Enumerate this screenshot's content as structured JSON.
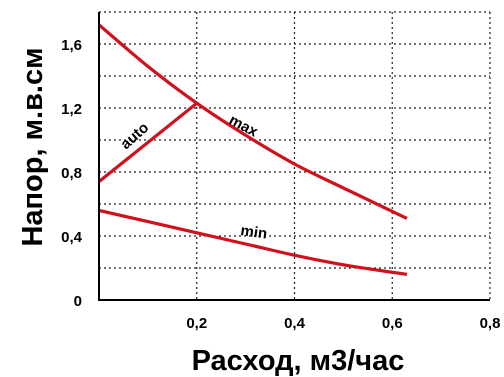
{
  "chart_data": {
    "type": "line",
    "xlabel": "Расход, м3/час",
    "ylabel": "Напор, м.в.см",
    "xlim": [
      0,
      0.8
    ],
    "ylim": [
      0,
      1.8
    ],
    "x_ticks": [
      {
        "value": 0.2,
        "label": "0,2"
      },
      {
        "value": 0.4,
        "label": "0,4"
      },
      {
        "value": 0.6,
        "label": "0,6"
      },
      {
        "value": 0.8,
        "label": "0,8"
      }
    ],
    "y_ticks": [
      {
        "value": 0,
        "label": "0"
      },
      {
        "value": 0.4,
        "label": "0,4"
      },
      {
        "value": 0.8,
        "label": "0,8"
      },
      {
        "value": 1.2,
        "label": "1,2"
      },
      {
        "value": 1.6,
        "label": "1,6"
      }
    ],
    "grid": "dotted",
    "line_color": "#d0101c",
    "series": [
      {
        "name": "max",
        "x": [
          0,
          0.1,
          0.2,
          0.3,
          0.4,
          0.5,
          0.63
        ],
        "y": [
          1.72,
          1.46,
          1.23,
          1.03,
          0.85,
          0.7,
          0.51
        ]
      },
      {
        "name": "auto",
        "x": [
          0,
          0.2
        ],
        "y": [
          0.74,
          1.23
        ]
      },
      {
        "name": "min",
        "x": [
          0,
          0.1,
          0.2,
          0.3,
          0.4,
          0.5,
          0.63
        ],
        "y": [
          0.56,
          0.49,
          0.42,
          0.35,
          0.28,
          0.22,
          0.16
        ]
      }
    ]
  }
}
